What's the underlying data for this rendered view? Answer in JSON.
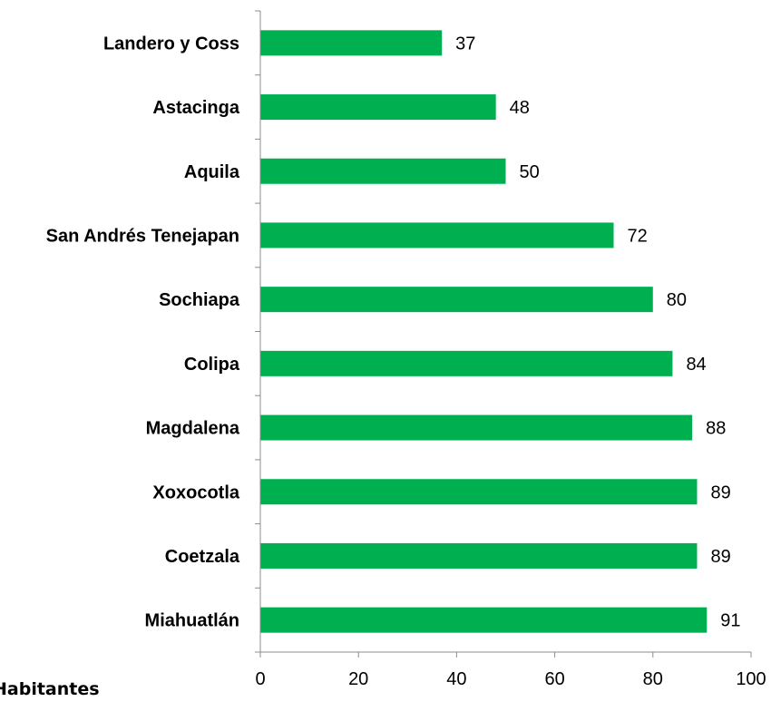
{
  "chart_data": {
    "type": "bar",
    "orientation": "horizontal",
    "title": "",
    "xlabel": "Habitantes",
    "ylabel": "",
    "categories": [
      "Landero y Coss",
      "Astacinga",
      "Aquila",
      "San Andrés Tenejapan",
      "Sochiapa",
      "Colipa",
      "Magdalena",
      "Xoxocotla",
      "Coetzala",
      "Miahuatlán"
    ],
    "values": [
      37,
      48,
      50,
      72,
      80,
      84,
      88,
      89,
      89,
      91
    ],
    "xlim": [
      0,
      100
    ],
    "xticks": [
      "0",
      "20",
      "40",
      "60",
      "80",
      "100"
    ],
    "grid": false,
    "legend": "none",
    "bar_color": "#00b050"
  }
}
